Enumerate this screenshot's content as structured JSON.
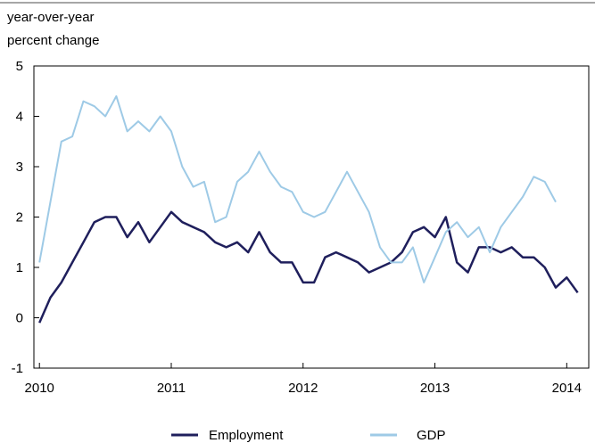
{
  "chart_data": {
    "type": "line",
    "ylabel_lines": [
      "year-over-year",
      "percent change"
    ],
    "ylim": [
      -1,
      5
    ],
    "y_ticks": [
      "5",
      "4",
      "3",
      "2",
      "1",
      "0",
      "-1"
    ],
    "y_tick_values": [
      5,
      4,
      3,
      2,
      1,
      0,
      -1
    ],
    "x_ticks": [
      "2010",
      "2011",
      "2012",
      "2013",
      "2014"
    ],
    "x_tick_values": [
      2010,
      2011,
      2012,
      2013,
      2014
    ],
    "xlim": [
      2009.958,
      2014.167
    ],
    "grid": false,
    "legend_position": "bottom",
    "series": [
      {
        "name": "Employment",
        "color": "#1f1f5c",
        "x_start": 2010.0,
        "x_step": 0.08333,
        "values": [
          -0.1,
          0.4,
          0.7,
          1.1,
          1.5,
          1.9,
          2.0,
          2.0,
          1.6,
          1.9,
          1.5,
          1.8,
          2.1,
          1.9,
          1.8,
          1.7,
          1.5,
          1.4,
          1.5,
          1.3,
          1.7,
          1.3,
          1.1,
          1.1,
          0.7,
          0.7,
          1.2,
          1.3,
          1.2,
          1.1,
          0.9,
          1.0,
          1.1,
          1.3,
          1.7,
          1.8,
          1.6,
          2.0,
          1.1,
          0.9,
          1.4,
          1.4,
          1.3,
          1.4,
          1.2,
          1.2,
          1.0,
          0.6,
          0.8,
          0.5
        ]
      },
      {
        "name": "GDP",
        "color": "#9ecae6",
        "x_start": 2010.0,
        "x_step": 0.08333,
        "values": [
          1.1,
          2.3,
          3.5,
          3.6,
          4.3,
          4.2,
          4.0,
          4.4,
          3.7,
          3.9,
          3.7,
          4.0,
          3.7,
          3.0,
          2.6,
          2.7,
          1.9,
          2.0,
          2.7,
          2.9,
          3.3,
          2.9,
          2.6,
          2.5,
          2.1,
          2.0,
          2.1,
          2.5,
          2.9,
          2.5,
          2.1,
          1.4,
          1.1,
          1.1,
          1.4,
          0.7,
          1.2,
          1.7,
          1.9,
          1.6,
          1.8,
          1.3,
          1.8,
          2.1,
          2.4,
          2.8,
          2.7,
          2.3
        ]
      }
    ]
  }
}
